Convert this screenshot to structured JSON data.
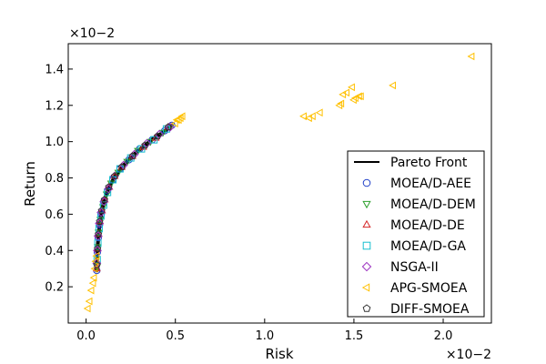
{
  "chart_data": {
    "type": "scatter",
    "xlabel": "Risk",
    "ylabel": "Return",
    "x_multiplier": "×10−2",
    "y_multiplier": "×10−2",
    "xlim": [
      -0.1,
      2.27
    ],
    "ylim": [
      0.0,
      1.54
    ],
    "xticks": [
      0.0,
      0.5,
      1.0,
      1.5,
      2.0
    ],
    "xtick_labels": [
      "0.0",
      "0.5",
      "1.0",
      "1.5",
      "2.0"
    ],
    "yticks": [
      0.2,
      0.4,
      0.6,
      0.8,
      1.0,
      1.2,
      1.4
    ],
    "ytick_labels": [
      "0.2",
      "0.4",
      "0.6",
      "0.8",
      "1.0",
      "1.2",
      "1.4"
    ],
    "grid": false,
    "legend_position": "lower-right",
    "pareto_front": {
      "name": "Pareto Front",
      "color": "#000000",
      "x": [
        0.06,
        0.062,
        0.066,
        0.072,
        0.08,
        0.09,
        0.1,
        0.12,
        0.14,
        0.17,
        0.2,
        0.24,
        0.28,
        0.33,
        0.38,
        0.43,
        0.48
      ],
      "y": [
        0.29,
        0.37,
        0.44,
        0.51,
        0.57,
        0.63,
        0.67,
        0.73,
        0.77,
        0.82,
        0.86,
        0.9,
        0.94,
        0.98,
        1.02,
        1.05,
        1.09
      ]
    },
    "series": [
      {
        "name": "MOEA/D-AEE",
        "marker": "circle",
        "color": "#1f3fc8",
        "x": [
          0.06,
          0.063,
          0.068,
          0.075,
          0.085,
          0.1,
          0.12,
          0.15,
          0.19,
          0.24,
          0.3,
          0.37,
          0.44,
          0.48
        ],
        "y": [
          0.29,
          0.39,
          0.47,
          0.54,
          0.6,
          0.67,
          0.73,
          0.79,
          0.85,
          0.9,
          0.96,
          1.01,
          1.06,
          1.09
        ]
      },
      {
        "name": "MOEA/D-DEM",
        "marker": "triangle-down",
        "color": "#2ca02c",
        "x": [
          0.061,
          0.065,
          0.07,
          0.08,
          0.095,
          0.115,
          0.14,
          0.18,
          0.23,
          0.29,
          0.36,
          0.43,
          0.47
        ],
        "y": [
          0.31,
          0.42,
          0.5,
          0.57,
          0.64,
          0.71,
          0.77,
          0.83,
          0.89,
          0.95,
          1.0,
          1.05,
          1.08
        ]
      },
      {
        "name": "MOEA/D-DE",
        "marker": "triangle-up",
        "color": "#d62728",
        "x": [
          0.06,
          0.064,
          0.07,
          0.078,
          0.09,
          0.105,
          0.13,
          0.16,
          0.2,
          0.26,
          0.32,
          0.39,
          0.46
        ],
        "y": [
          0.3,
          0.41,
          0.49,
          0.56,
          0.62,
          0.68,
          0.75,
          0.81,
          0.86,
          0.92,
          0.97,
          1.02,
          1.08
        ]
      },
      {
        "name": "MOEA/D-GA",
        "marker": "square",
        "color": "#17becf",
        "x": [
          0.062,
          0.066,
          0.073,
          0.083,
          0.098,
          0.12,
          0.15,
          0.19,
          0.25,
          0.31,
          0.38,
          0.45
        ],
        "y": [
          0.35,
          0.44,
          0.52,
          0.59,
          0.65,
          0.72,
          0.79,
          0.85,
          0.91,
          0.96,
          1.01,
          1.07
        ]
      },
      {
        "name": "NSGA-II",
        "marker": "diamond",
        "color": "#9b30c0",
        "x": [
          0.06,
          0.063,
          0.067,
          0.074,
          0.084,
          0.1,
          0.125,
          0.16,
          0.21,
          0.27,
          0.34,
          0.41,
          0.47
        ],
        "y": [
          0.33,
          0.4,
          0.48,
          0.55,
          0.61,
          0.67,
          0.74,
          0.81,
          0.87,
          0.93,
          0.99,
          1.04,
          1.08
        ]
      },
      {
        "name": "APG-SMOEA",
        "marker": "triangle-left",
        "color": "#ffc000",
        "x": [
          0.01,
          0.02,
          0.03,
          0.04,
          0.045,
          0.05,
          0.055,
          0.06,
          0.52,
          0.53,
          0.54,
          0.5,
          0.51,
          1.22,
          1.25,
          1.27,
          1.31,
          1.42,
          1.43,
          1.44,
          1.46,
          1.49,
          1.5,
          1.51,
          1.53,
          1.54,
          1.72,
          2.16
        ],
        "y": [
          0.08,
          0.12,
          0.18,
          0.22,
          0.25,
          0.3,
          0.34,
          0.37,
          1.12,
          1.13,
          1.14,
          1.1,
          1.12,
          1.14,
          1.13,
          1.14,
          1.16,
          1.2,
          1.21,
          1.26,
          1.27,
          1.3,
          1.23,
          1.24,
          1.25,
          1.25,
          1.31,
          1.47
        ]
      },
      {
        "name": "DIFF-SMOEA",
        "marker": "pentagon",
        "color": "#333333",
        "x": [
          0.061,
          0.064,
          0.069,
          0.076,
          0.087,
          0.103,
          0.127,
          0.16,
          0.2,
          0.26,
          0.33,
          0.4,
          0.46
        ],
        "y": [
          0.32,
          0.41,
          0.49,
          0.56,
          0.62,
          0.68,
          0.75,
          0.81,
          0.86,
          0.92,
          0.98,
          1.03,
          1.08
        ]
      }
    ]
  }
}
